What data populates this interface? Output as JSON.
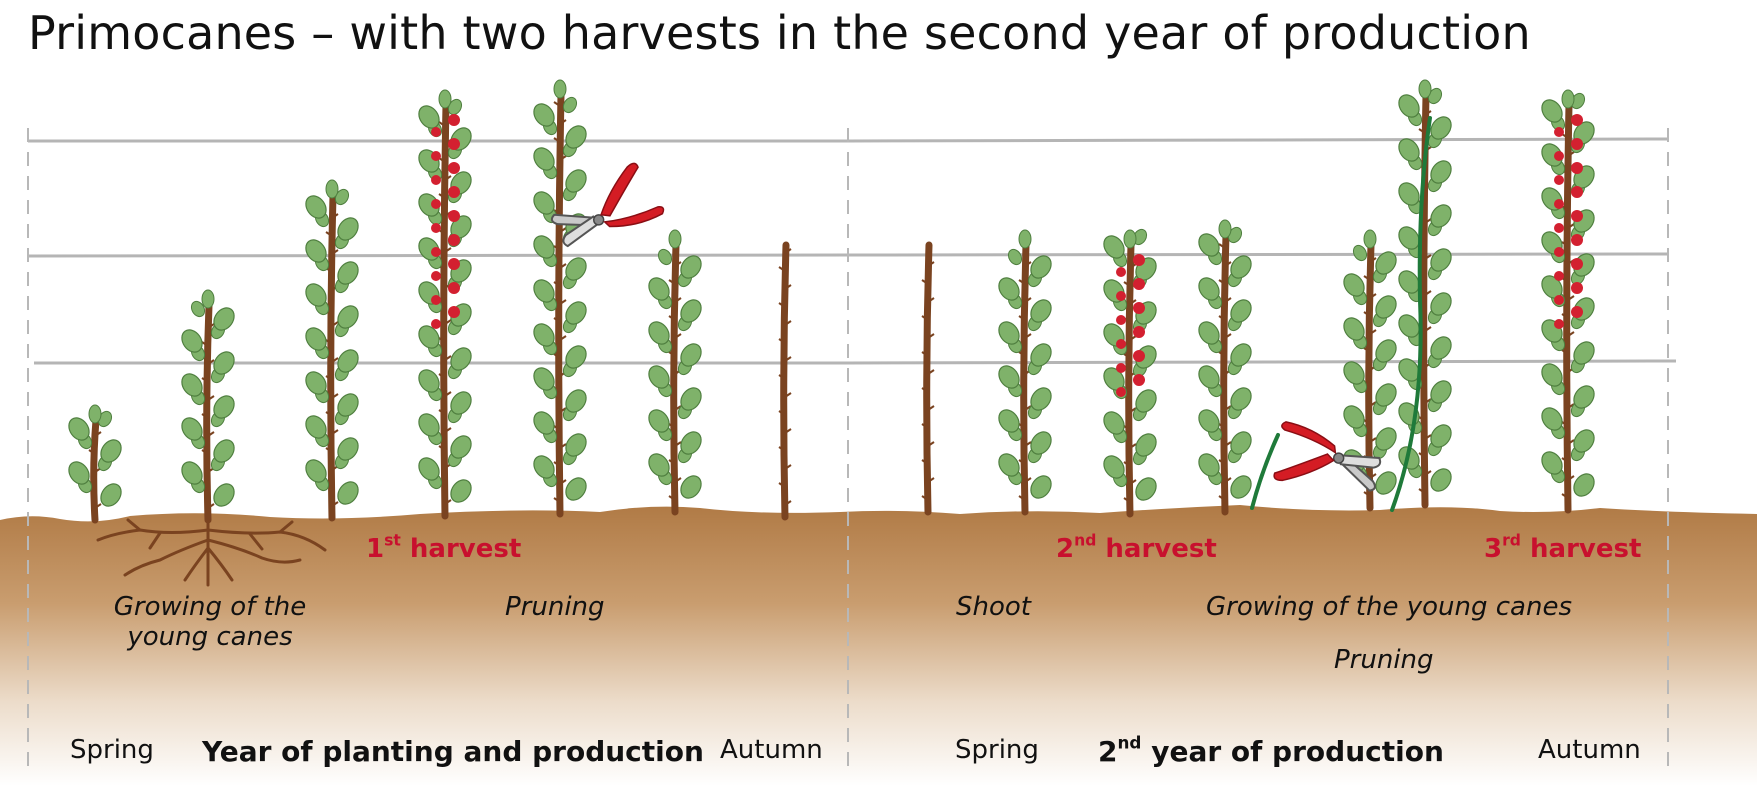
{
  "title": "Primocanes – with two harvests in the second year of production",
  "colors": {
    "soil_top": "#b07a45",
    "soil_fade": "#ffffff",
    "cane": "#7a4320",
    "leaf": "#7fb26a",
    "berry": "#d32030",
    "harvest_text": "#c8102e",
    "wire": "#b5b5b5",
    "pruner_handle": "#d41c24",
    "green_shoot": "#1f7a3a"
  },
  "year1": {
    "first_harvest": {
      "num": "1",
      "sup": "st",
      "word": "harvest"
    },
    "growing_line1": "Growing of the",
    "growing_line2": "young canes",
    "pruning": "Pruning",
    "spring": "Spring",
    "title": "Year of planting and production",
    "autumn": "Autumn"
  },
  "year2": {
    "second_harvest": {
      "num": "2",
      "sup": "nd",
      "word": "harvest"
    },
    "third_harvest": {
      "num": "3",
      "sup": "rd",
      "word": "harvest"
    },
    "shoot": "Shoot",
    "growing": "Growing of the young canes",
    "pruning": "Pruning",
    "spring": "Spring",
    "title_num": "2",
    "title_sup": "nd",
    "title_rest": " year of production",
    "autumn": "Autumn"
  },
  "icons": [
    "pruning-shears-icon",
    "raspberry-cane-icon",
    "roots-icon"
  ]
}
